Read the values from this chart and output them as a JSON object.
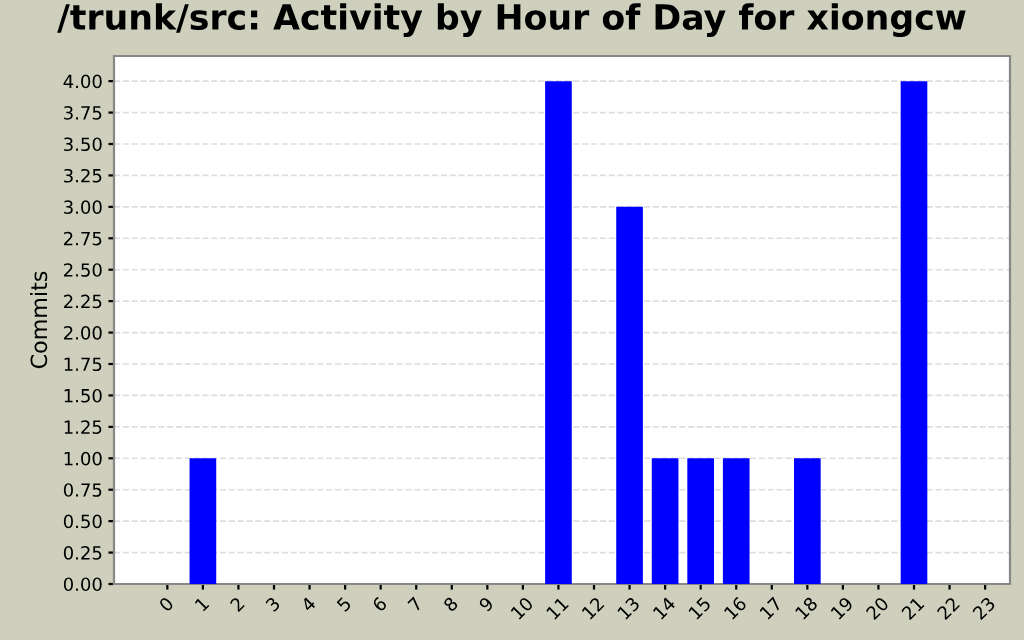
{
  "chart_data": {
    "type": "bar",
    "title": "/trunk/src: Activity by Hour of Day for xiongcw",
    "ylabel": "Commits",
    "categories": [
      "0",
      "1",
      "2",
      "3",
      "4",
      "5",
      "6",
      "7",
      "8",
      "9",
      "10",
      "11",
      "12",
      "13",
      "14",
      "15",
      "16",
      "17",
      "18",
      "19",
      "20",
      "21",
      "22",
      "23"
    ],
    "values": [
      0,
      1,
      0,
      0,
      0,
      0,
      0,
      0,
      0,
      0,
      0,
      4,
      0,
      3,
      1,
      1,
      1,
      0,
      1,
      0,
      0,
      4,
      0,
      0
    ],
    "color": "#0000ff",
    "ylim": [
      0,
      4.2
    ],
    "yticks": [
      {
        "value": 0,
        "label": "0.00"
      },
      {
        "value": 0.25,
        "label": "0.25"
      },
      {
        "value": 0.5,
        "label": "0.50"
      },
      {
        "value": 0.75,
        "label": "0.75"
      },
      {
        "value": 1,
        "label": "1.00"
      },
      {
        "value": 1.25,
        "label": "1.25"
      },
      {
        "value": 1.5,
        "label": "1.50"
      },
      {
        "value": 1.75,
        "label": "1.75"
      },
      {
        "value": 2,
        "label": "2.00"
      },
      {
        "value": 2.25,
        "label": "2.25"
      },
      {
        "value": 2.5,
        "label": "2.50"
      },
      {
        "value": 2.75,
        "label": "2.75"
      },
      {
        "value": 3,
        "label": "3.00"
      },
      {
        "value": 3.25,
        "label": "3.25"
      },
      {
        "value": 3.5,
        "label": "3.50"
      },
      {
        "value": 3.75,
        "label": "3.75"
      },
      {
        "value": 4,
        "label": "4.00"
      }
    ],
    "grid": "y"
  }
}
